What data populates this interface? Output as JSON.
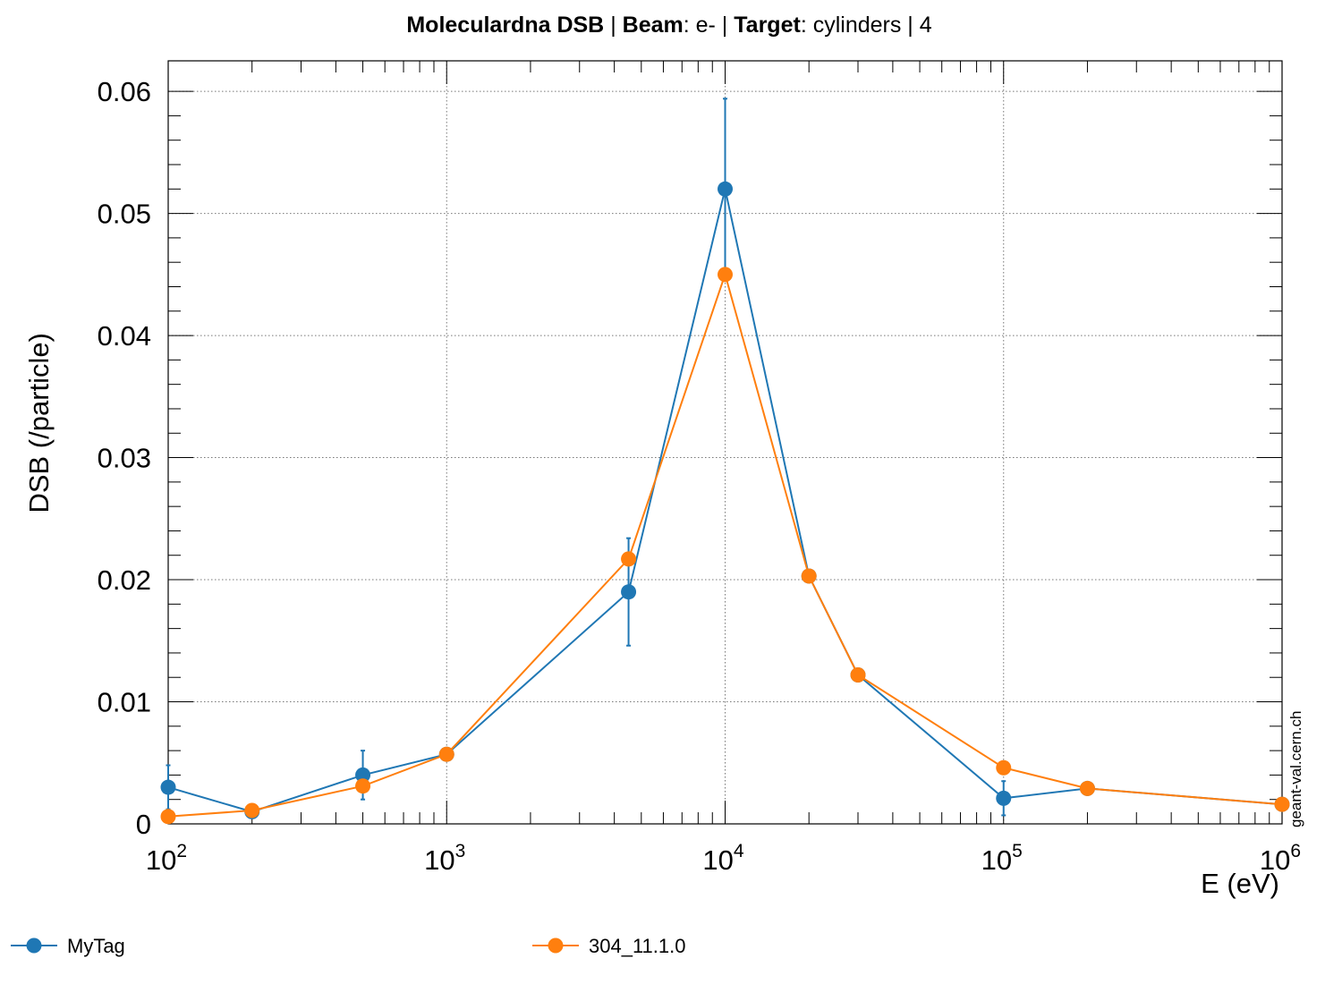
{
  "chart_data": {
    "type": "line",
    "title_parts": [
      {
        "text": "Moleculardna DSB ",
        "bold": true
      },
      {
        "text": " | ",
        "bold": false
      },
      {
        "text": "Beam",
        "bold": true
      },
      {
        "text": ": e- | ",
        "bold": false
      },
      {
        "text": "Target",
        "bold": true
      },
      {
        "text": ": cylinders | 4",
        "bold": false
      }
    ],
    "xlabel": "E (eV)",
    "ylabel": "DSB (/particle)",
    "xscale": "log",
    "xlim": [
      100,
      1000000
    ],
    "ylim": [
      0,
      0.0625
    ],
    "grid": true,
    "legend_position": "bottom",
    "side_note": "geant-val.cern.ch",
    "x_ticks": [
      {
        "value": 100,
        "base": "10",
        "exp": "2"
      },
      {
        "value": 1000,
        "base": "10",
        "exp": "3"
      },
      {
        "value": 10000,
        "base": "10",
        "exp": "4"
      },
      {
        "value": 100000,
        "base": "10",
        "exp": "5"
      },
      {
        "value": 1000000,
        "base": "10",
        "exp": "6"
      }
    ],
    "y_ticks": [
      {
        "value": 0,
        "label": "0"
      },
      {
        "value": 0.01,
        "label": "0.01"
      },
      {
        "value": 0.02,
        "label": "0.02"
      },
      {
        "value": 0.03,
        "label": "0.03"
      },
      {
        "value": 0.04,
        "label": "0.04"
      },
      {
        "value": 0.05,
        "label": "0.05"
      },
      {
        "value": 0.06,
        "label": "0.06"
      }
    ],
    "series": [
      {
        "name": "MyTag",
        "color": "#1f77b4",
        "points": [
          {
            "x": 100,
            "y": 0.003,
            "err": 0.0018
          },
          {
            "x": 200,
            "y": 0.001,
            "err": 0.0
          },
          {
            "x": 500,
            "y": 0.004,
            "err": 0.002
          },
          {
            "x": 1000,
            "y": 0.0057,
            "err": 0.0
          },
          {
            "x": 4500,
            "y": 0.019,
            "err": 0.0044
          },
          {
            "x": 10000,
            "y": 0.052,
            "err": 0.0074
          },
          {
            "x": 20000,
            "y": 0.0203,
            "err": 0.0
          },
          {
            "x": 30000,
            "y": 0.0122,
            "err": 0.0
          },
          {
            "x": 100000,
            "y": 0.0021,
            "err": 0.0014
          },
          {
            "x": 200000,
            "y": 0.0029,
            "err": 0.0
          },
          {
            "x": 1000000,
            "y": 0.0016,
            "err": 0.0
          }
        ]
      },
      {
        "name": "304_11.1.0",
        "color": "#ff7f0e",
        "points": [
          {
            "x": 100,
            "y": 0.0006,
            "err": 0.0
          },
          {
            "x": 200,
            "y": 0.0011,
            "err": 0.0
          },
          {
            "x": 500,
            "y": 0.0031,
            "err": 0.0
          },
          {
            "x": 1000,
            "y": 0.0057,
            "err": 0.0
          },
          {
            "x": 4500,
            "y": 0.0217,
            "err": 0.0
          },
          {
            "x": 10000,
            "y": 0.045,
            "err": 0.0
          },
          {
            "x": 20000,
            "y": 0.0203,
            "err": 0.0
          },
          {
            "x": 30000,
            "y": 0.0122,
            "err": 0.0
          },
          {
            "x": 100000,
            "y": 0.0046,
            "err": 0.0
          },
          {
            "x": 200000,
            "y": 0.0029,
            "err": 0.0
          },
          {
            "x": 1000000,
            "y": 0.0016,
            "err": 0.0
          }
        ]
      }
    ]
  }
}
